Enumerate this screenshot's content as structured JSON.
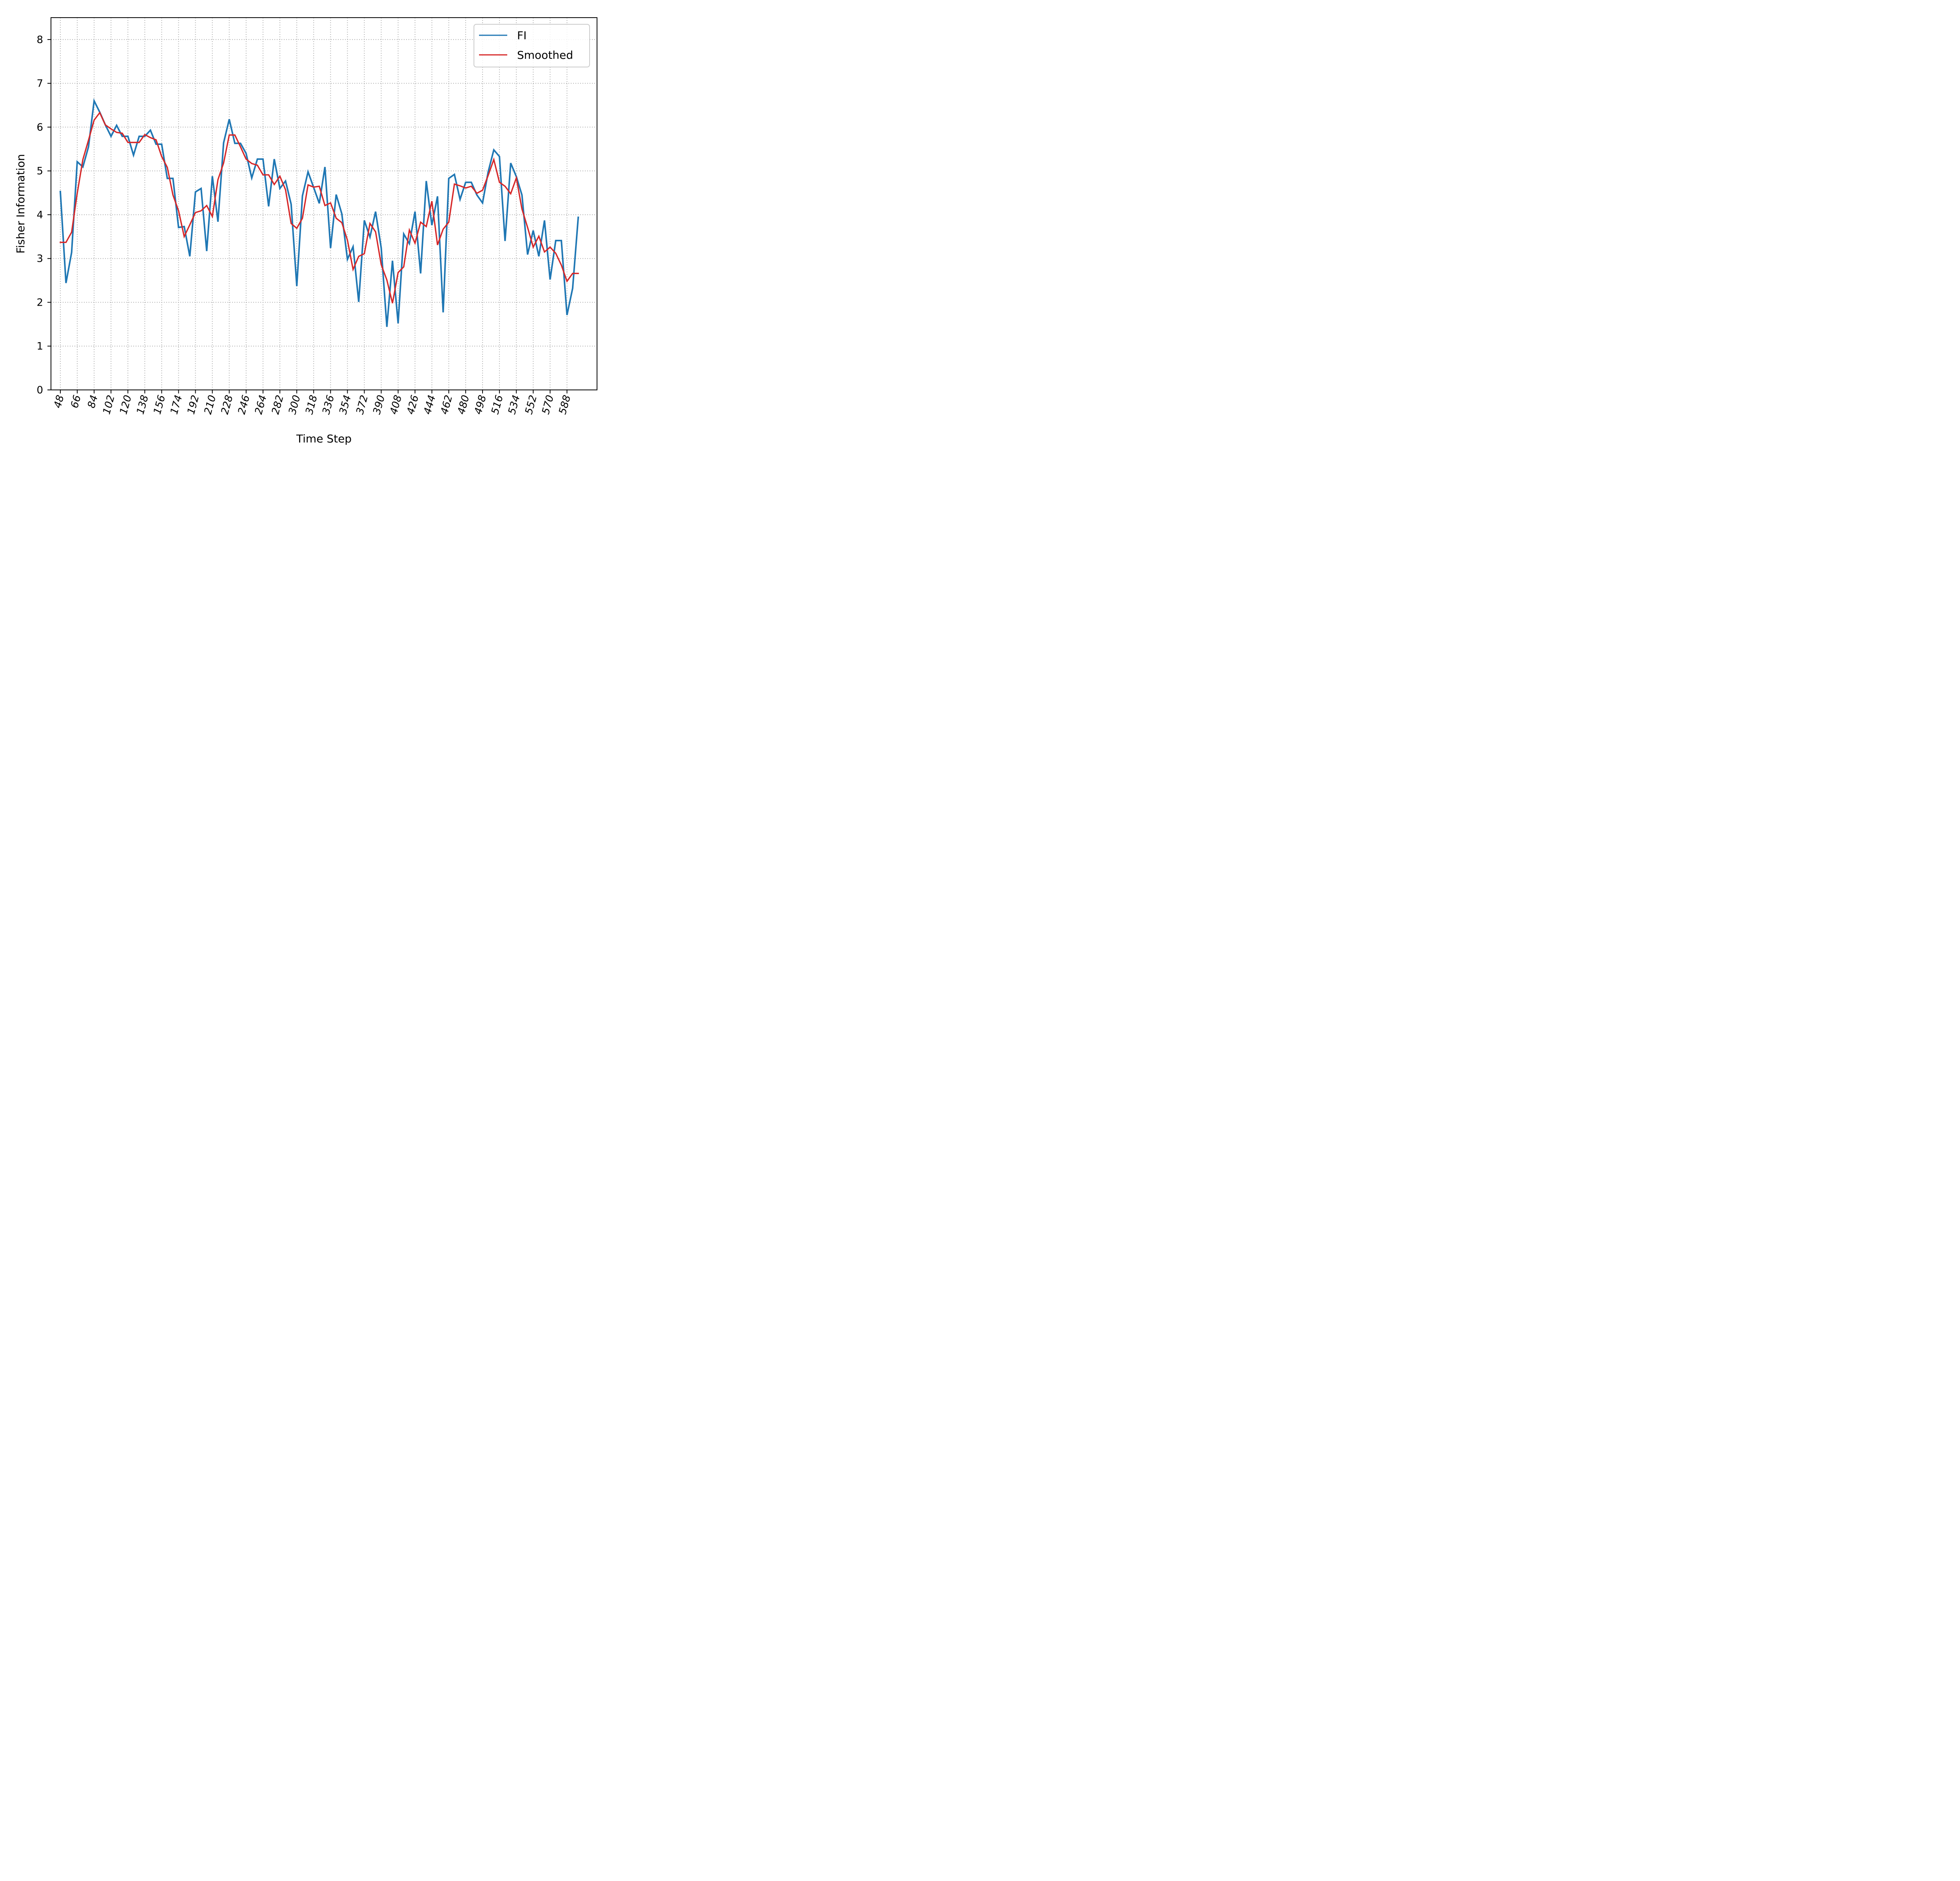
{
  "chart_data": {
    "type": "line",
    "xlabel": "Time Step",
    "ylabel": "Fisher Information",
    "ylim": [
      0,
      8.5
    ],
    "yticks": [
      0,
      1,
      2,
      3,
      4,
      5,
      6,
      7,
      8
    ],
    "xlim": [
      38,
      620
    ],
    "xticks": [
      48,
      66,
      84,
      102,
      120,
      138,
      156,
      174,
      192,
      210,
      228,
      246,
      264,
      282,
      300,
      318,
      336,
      354,
      372,
      390,
      408,
      426,
      444,
      462,
      480,
      498,
      516,
      534,
      552,
      570,
      588
    ],
    "xtick_labels": [
      "48",
      "66",
      "84",
      "102",
      "120",
      "138",
      "156",
      "174",
      "192",
      "210",
      "228",
      "246",
      "264",
      "282",
      "300",
      "318",
      "336",
      "354",
      "372",
      "390",
      "408",
      "426",
      "444",
      "462",
      "480",
      "498",
      "516",
      "534",
      "552",
      "570",
      "588"
    ],
    "grid": true,
    "legend_position": "upper right",
    "x": [
      48,
      54,
      60,
      66,
      72,
      78,
      84,
      90,
      96,
      102,
      108,
      114,
      120,
      126,
      132,
      138,
      144,
      150,
      156,
      162,
      168,
      174,
      180,
      186,
      192,
      198,
      204,
      210,
      216,
      222,
      228,
      234,
      240,
      246,
      252,
      258,
      264,
      270,
      276,
      282,
      288,
      294,
      300,
      306,
      312,
      318,
      324,
      330,
      336,
      342,
      348,
      354,
      360,
      366,
      372,
      378,
      384,
      390,
      396,
      402,
      408,
      414,
      420,
      426,
      432,
      438,
      444,
      450,
      456,
      462,
      468,
      474,
      480,
      486,
      492,
      498,
      504,
      510,
      516,
      522,
      528,
      534,
      540,
      546,
      552,
      558,
      564,
      570,
      576,
      582,
      588,
      594,
      600
    ],
    "series": [
      {
        "name": "FI",
        "color": "#1f77b4",
        "values": [
          4.53,
          2.44,
          3.14,
          5.21,
          5.09,
          5.55,
          6.6,
          6.34,
          6.05,
          5.79,
          6.04,
          5.79,
          5.79,
          5.36,
          5.79,
          5.79,
          5.93,
          5.61,
          5.61,
          4.83,
          4.83,
          3.71,
          3.73,
          3.05,
          4.52,
          4.6,
          3.17,
          4.88,
          3.84,
          5.64,
          6.18,
          5.63,
          5.63,
          5.4,
          4.84,
          5.27,
          5.27,
          4.19,
          5.27,
          4.6,
          4.77,
          4.24,
          2.37,
          4.43,
          4.98,
          4.62,
          4.26,
          5.09,
          3.24,
          4.46,
          4.02,
          2.98,
          3.27,
          2.01,
          3.87,
          3.49,
          4.07,
          3.24,
          1.44,
          2.95,
          1.52,
          3.56,
          3.34,
          4.07,
          2.66,
          4.77,
          3.76,
          4.42,
          1.77,
          4.83,
          4.92,
          4.35,
          4.74,
          4.74,
          4.45,
          4.27,
          4.98,
          5.48,
          5.33,
          3.4,
          5.18,
          4.87,
          4.45,
          3.09,
          3.64,
          3.05,
          3.87,
          2.52,
          3.41,
          3.41,
          1.71,
          2.32,
          3.94
        ]
      },
      {
        "name": "Smoothed",
        "color": "#d62728",
        "values": [
          3.37,
          3.37,
          3.6,
          4.49,
          5.26,
          5.7,
          6.16,
          6.33,
          6.05,
          5.96,
          5.88,
          5.86,
          5.65,
          5.65,
          5.65,
          5.83,
          5.76,
          5.71,
          5.33,
          5.08,
          4.45,
          4.09,
          3.5,
          3.77,
          4.05,
          4.09,
          4.21,
          3.96,
          4.8,
          5.18,
          5.82,
          5.82,
          5.55,
          5.27,
          5.17,
          5.13,
          4.91,
          4.91,
          4.69,
          4.88,
          4.57,
          3.8,
          3.69,
          3.92,
          4.68,
          4.63,
          4.65,
          4.21,
          4.27,
          3.92,
          3.82,
          3.42,
          2.75,
          3.05,
          3.11,
          3.8,
          3.61,
          2.86,
          2.51,
          1.98,
          2.68,
          2.81,
          3.65,
          3.35,
          3.83,
          3.73,
          4.31,
          3.31,
          3.67,
          3.83,
          4.7,
          4.66,
          4.61,
          4.65,
          4.49,
          4.56,
          4.9,
          5.26,
          4.74,
          4.65,
          4.48,
          4.84,
          4.13,
          3.71,
          3.26,
          3.51,
          3.15,
          3.26,
          3.12,
          2.85,
          2.48,
          2.66,
          2.66
        ]
      }
    ]
  }
}
